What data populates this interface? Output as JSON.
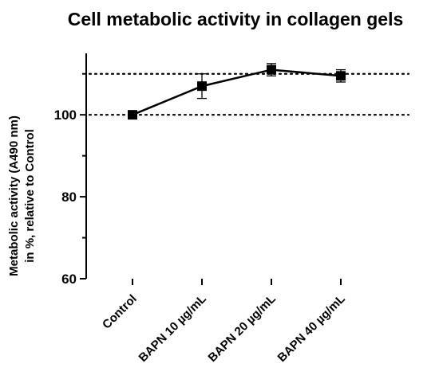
{
  "chart_data": {
    "type": "line",
    "title": "Cell metabolic activity in collagen gels",
    "xlabel": "",
    "ylabel_line1": "Metabolic activity (A490 nm)",
    "ylabel_line2": "in %, relative to Control",
    "ylim": [
      60,
      115
    ],
    "yticks": [
      60,
      80,
      100
    ],
    "ytick_labels": [
      "60",
      "80",
      "100"
    ],
    "reference_lines": [
      100,
      110
    ],
    "grid": false,
    "legend": "none",
    "categories": [
      "Control",
      "BAPN 10 µg/mL",
      "BAPN 20 µg/mL",
      "BAPN 40 µg/mL"
    ],
    "series": [
      {
        "values": [
          100,
          107,
          111,
          109.5
        ],
        "error": [
          0,
          3,
          1.5,
          1.5
        ],
        "marker": "square",
        "color": "#000000"
      }
    ]
  }
}
